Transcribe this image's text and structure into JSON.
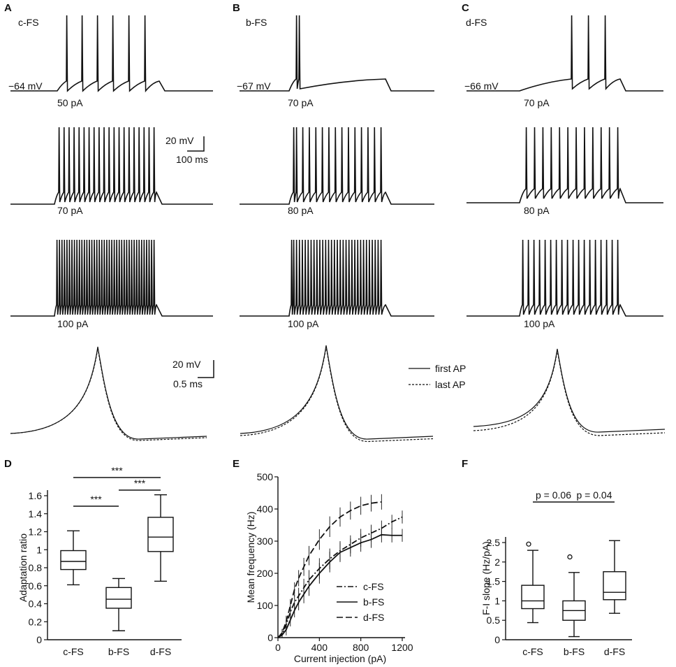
{
  "panels": {
    "A": {
      "label": "A",
      "cell": "c-FS",
      "vrest": "−64 mV",
      "currents": [
        "50 pA",
        "70 pA",
        "100 pA"
      ]
    },
    "B": {
      "label": "B",
      "cell": "b-FS",
      "vrest": "−67 mV",
      "currents": [
        "70 pA",
        "80 pA",
        "100 pA"
      ]
    },
    "C": {
      "label": "C",
      "cell": "d-FS",
      "vrest": "−66 mV",
      "currents": [
        "70 pA",
        "80 pA",
        "100 pA"
      ]
    },
    "D": {
      "label": "D"
    },
    "E": {
      "label": "E"
    },
    "F": {
      "label": "F"
    }
  },
  "scalebars": {
    "spikes": {
      "v": "20 mV",
      "t": "100 ms"
    },
    "ap": {
      "v": "20 mV",
      "t": "0.5 ms"
    }
  },
  "ap_legend": {
    "first": "first AP",
    "last": "last AP"
  },
  "chart_data": [
    {
      "panel": "D",
      "type": "box",
      "ylabel": "Adaptation ratio",
      "categories": [
        "c-FS",
        "b-FS",
        "d-FS"
      ],
      "ylim": [
        0,
        1.6
      ],
      "yticks": [
        "0",
        "0.2",
        "0.4",
        "0.6",
        "0.8",
        "1",
        "1.2",
        "1.4",
        "1.6"
      ],
      "boxes": [
        {
          "min": 0.61,
          "q1": 0.78,
          "median": 0.87,
          "q3": 0.99,
          "max": 1.21
        },
        {
          "min": 0.1,
          "q1": 0.35,
          "median": 0.45,
          "q3": 0.58,
          "max": 0.68
        },
        {
          "min": 0.65,
          "q1": 0.98,
          "median": 1.14,
          "q3": 1.36,
          "max": 1.61
        }
      ],
      "brackets": [
        {
          "from": 0,
          "to": 1,
          "label": "***"
        },
        {
          "from": 1,
          "to": 2,
          "label": "***"
        },
        {
          "from": 0,
          "to": 2,
          "label": "***"
        }
      ]
    },
    {
      "panel": "E",
      "type": "line",
      "xlabel": "Current injection (pA)",
      "ylabel": "Mean frequency (Hz)",
      "xlim": [
        0,
        1200
      ],
      "ylim": [
        0,
        500
      ],
      "xticks": [
        "0",
        "400",
        "800",
        "1200"
      ],
      "yticks": [
        "0",
        "100",
        "200",
        "300",
        "400",
        "500"
      ],
      "series": [
        {
          "name": "c-FS",
          "x": [
            0,
            40,
            80,
            120,
            160,
            200,
            250,
            300,
            400,
            500,
            600,
            700,
            800,
            900,
            1000,
            1100,
            1200
          ],
          "y": [
            0,
            10,
            40,
            80,
            110,
            130,
            155,
            180,
            215,
            245,
            270,
            290,
            310,
            325,
            340,
            360,
            375
          ]
        },
        {
          "name": "b-FS",
          "x": [
            0,
            40,
            80,
            120,
            160,
            200,
            250,
            300,
            400,
            500,
            600,
            700,
            800,
            900,
            1000,
            1100,
            1200
          ],
          "y": [
            0,
            8,
            25,
            55,
            85,
            110,
            135,
            160,
            200,
            235,
            265,
            280,
            295,
            305,
            320,
            318,
            318
          ]
        },
        {
          "name": "d-FS",
          "x": [
            0,
            40,
            80,
            120,
            160,
            200,
            250,
            300,
            400,
            500,
            600,
            700,
            800,
            900,
            1000
          ],
          "y": [
            0,
            15,
            50,
            100,
            150,
            185,
            220,
            255,
            305,
            345,
            375,
            395,
            410,
            418,
            422
          ]
        }
      ],
      "errors": [
        12,
        12,
        18,
        20,
        22,
        25,
        28,
        30,
        32,
        32,
        30,
        28,
        28,
        26,
        24,
        22,
        20
      ]
    },
    {
      "panel": "F",
      "type": "box",
      "ylabel": "F-I slope (Hz/pA)",
      "categories": [
        "c-FS",
        "b-FS",
        "d-FS"
      ],
      "ylim": [
        0,
        2.5
      ],
      "yticks": [
        "0",
        "0.5",
        "1",
        "1.5",
        "2",
        "2.5"
      ],
      "boxes": [
        {
          "min": 0.44,
          "q1": 0.8,
          "median": 1.0,
          "q3": 1.4,
          "max": 2.3,
          "outliers": [
            2.46
          ]
        },
        {
          "min": 0.08,
          "q1": 0.5,
          "median": 0.75,
          "q3": 1.0,
          "max": 1.73,
          "outliers": [
            2.13
          ]
        },
        {
          "min": 0.68,
          "q1": 1.03,
          "median": 1.22,
          "q3": 1.75,
          "max": 2.55
        }
      ],
      "brackets": [
        {
          "from": 0,
          "to": 1,
          "label": "p = 0.06"
        },
        {
          "from": 1,
          "to": 2,
          "label": "p = 0.04"
        }
      ]
    }
  ]
}
